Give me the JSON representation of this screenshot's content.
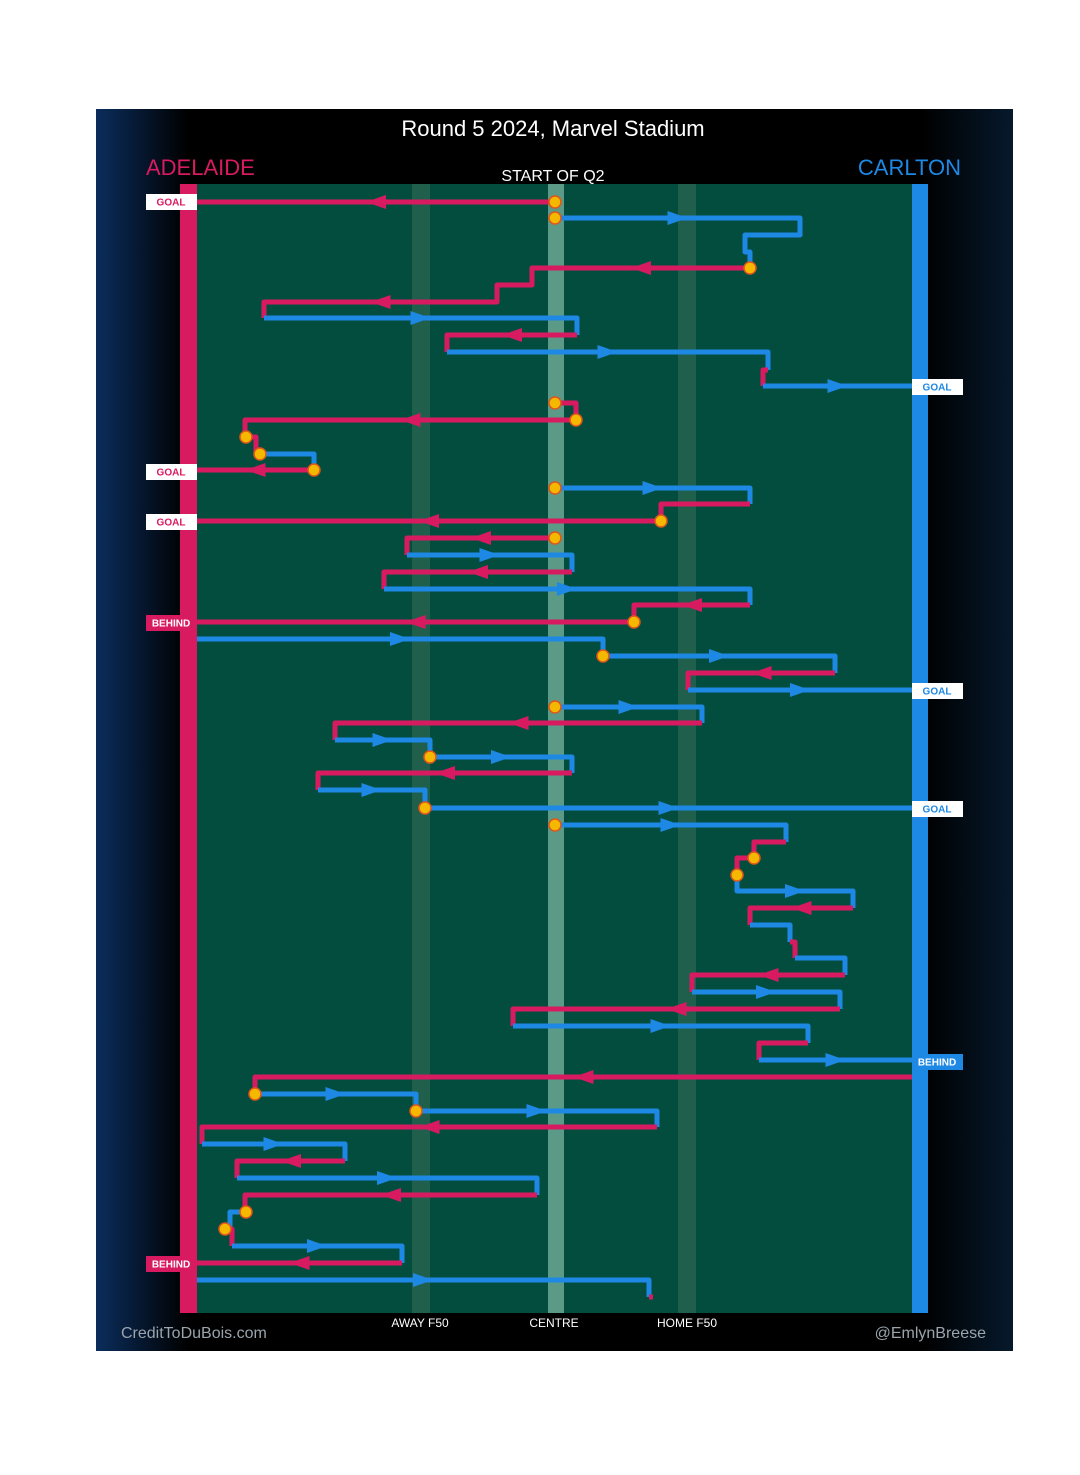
{
  "title": "Round 5 2024, Marvel Stadium",
  "teams": {
    "left": "ADELAIDE",
    "right": "CARLTON"
  },
  "start_label": "START OF Q2",
  "outcomes": {
    "left": [
      "GOAL",
      "GOAL",
      "GOAL",
      "BEHIND",
      "BEHIND"
    ],
    "right": [
      "GOAL",
      "GOAL",
      "GOAL",
      "BEHIND"
    ]
  },
  "field_labels": [
    "AWAY F50",
    "CENTRE",
    "HOME F50"
  ],
  "credits": {
    "left": "CreditToDuBois.com",
    "right": "@EmlynBreese"
  }
}
